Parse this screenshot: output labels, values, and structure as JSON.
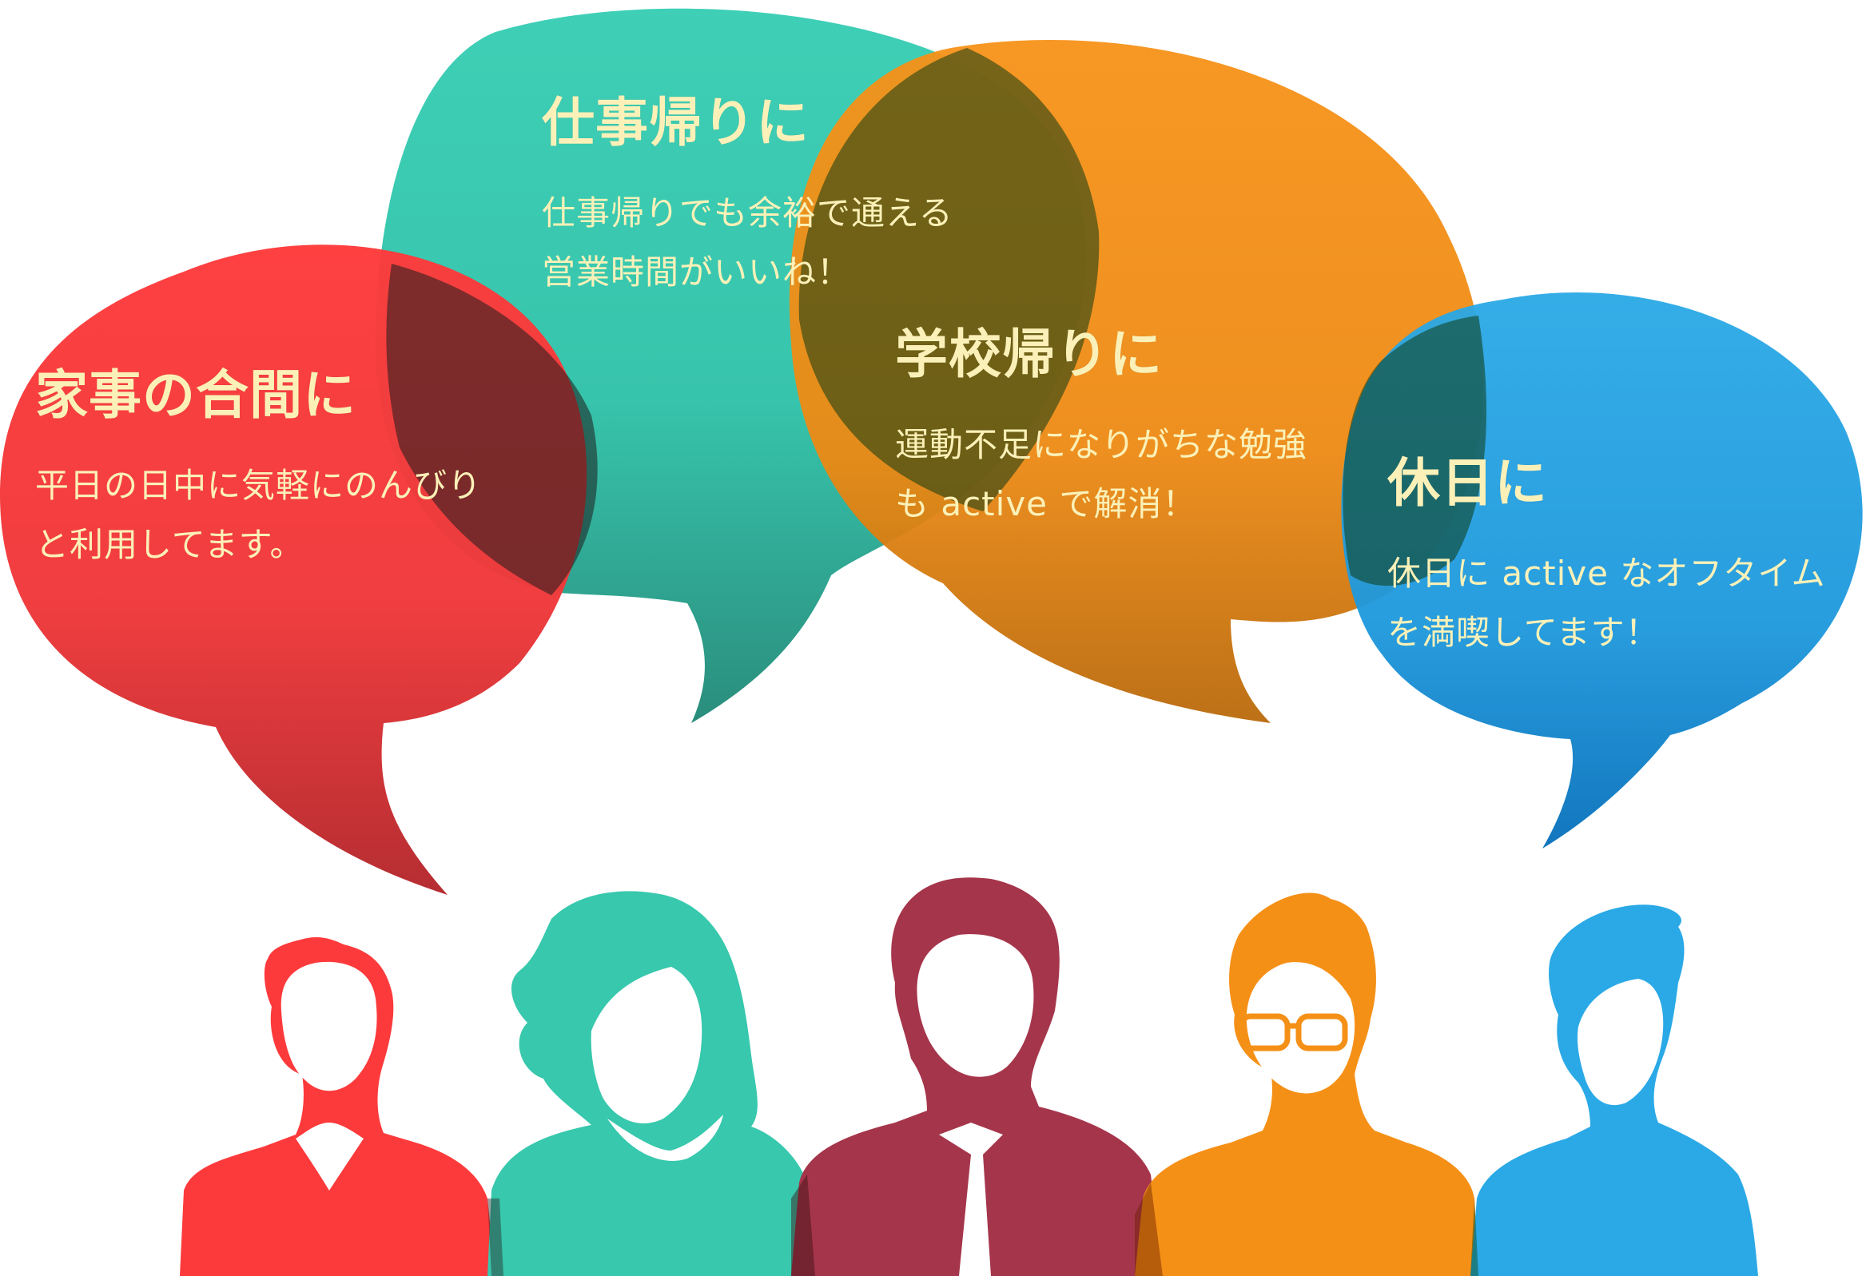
{
  "colors": {
    "red": "#fd3a3b",
    "teal": "#37cdb2",
    "orange": "#f59017",
    "blue": "#1ea8e6",
    "maroon": "#a5354b",
    "text_cream": "#fbf1b8"
  },
  "bubbles": [
    {
      "title": "家事の合間に",
      "lines": [
        "平日の日中に気軽にのんびり",
        "と利用してます。"
      ]
    },
    {
      "title": "仕事帰りに",
      "lines": [
        "仕事帰りでも余裕で通える",
        "営業時間がいいね！"
      ]
    },
    {
      "title": "学校帰りに",
      "lines": [
        "運動不足になりがちな勉強",
        "も active で解消！"
      ]
    },
    {
      "title": "休日に",
      "lines": [
        "休日に active なオフタイム",
        "を満喫してます！"
      ]
    }
  ]
}
